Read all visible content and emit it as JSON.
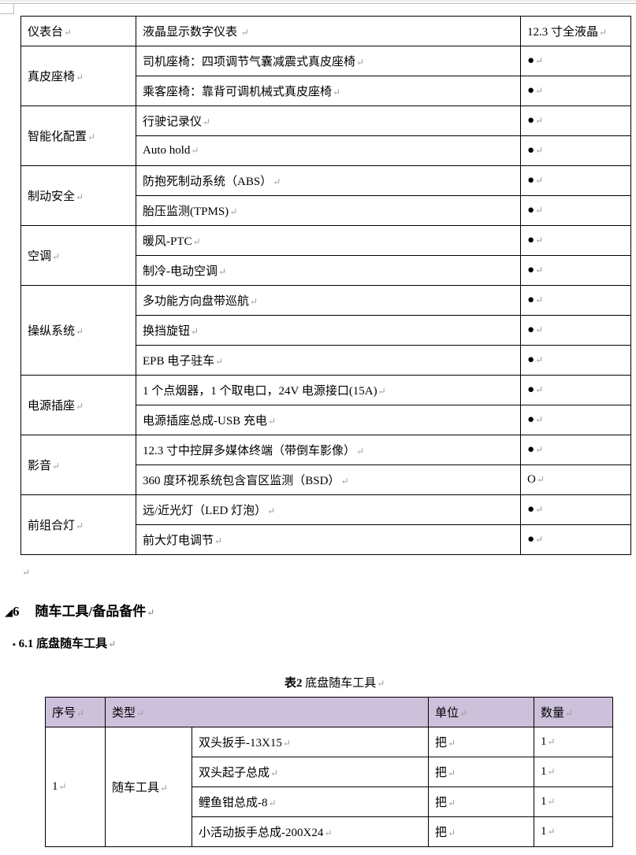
{
  "table1": {
    "rows": [
      {
        "category": "仪表台",
        "items": [
          {
            "name": "液晶显示数字仪表 ",
            "value": "12.3 寸全液晶"
          }
        ]
      },
      {
        "category": "真皮座椅",
        "items": [
          {
            "name": "司机座椅：四项调节气囊减震式真皮座椅",
            "value": "●"
          },
          {
            "name": "乘客座椅：靠背可调机械式真皮座椅",
            "value": "●"
          }
        ]
      },
      {
        "category": "智能化配置",
        "items": [
          {
            "name": "行驶记录仪",
            "value": "●"
          },
          {
            "name": "Auto hold",
            "value": "●"
          }
        ]
      },
      {
        "category": "制动安全",
        "items": [
          {
            "name": "防抱死制动系统（ABS）",
            "value": "●"
          },
          {
            "name": "胎压监测(TPMS)",
            "value": "●"
          }
        ]
      },
      {
        "category": "空调",
        "items": [
          {
            "name": "暖风-PTC",
            "value": "●"
          },
          {
            "name": "制冷-电动空调",
            "value": "●"
          }
        ]
      },
      {
        "category": "操纵系统",
        "items": [
          {
            "name": "多功能方向盘带巡航",
            "value": "●"
          },
          {
            "name": "换挡旋钮",
            "value": "●"
          },
          {
            "name": "EPB 电子驻车",
            "value": "●"
          }
        ]
      },
      {
        "category": "电源插座",
        "items": [
          {
            "name": "1 个点烟器，1 个取电口，24V 电源接口(15A)",
            "value": "●"
          },
          {
            "name": "电源插座总成-USB 充电",
            "value": "●"
          }
        ]
      },
      {
        "category": "影音",
        "items": [
          {
            "name": "12.3 寸中控屏多媒体终端（带倒车影像）",
            "value": "●"
          },
          {
            "name": "360 度环视系统包含盲区监测（BSD）",
            "value": "O"
          }
        ]
      },
      {
        "category": "前组合灯",
        "items": [
          {
            "name": "远/近光灯（LED 灯泡）",
            "value": "●"
          },
          {
            "name": "前大灯电调节",
            "value": "●"
          }
        ]
      }
    ]
  },
  "heading1": {
    "marker": "◢",
    "number": "6",
    "title": "随车工具/备品备件"
  },
  "heading2": {
    "marker": "▪",
    "number": "6.1",
    "title": "底盘随车工具"
  },
  "caption": {
    "bold": "表2",
    "text": " 底盘随车工具"
  },
  "table2": {
    "header_color": "#ccc0da",
    "headers": [
      "序号",
      "类型",
      "单位",
      "数量"
    ],
    "index": "1",
    "type": "随车工具",
    "rows": [
      {
        "name": "双头扳手-13X15",
        "unit": "把",
        "qty": "1"
      },
      {
        "name": "双头起子总成",
        "unit": "把",
        "qty": "1"
      },
      {
        "name": "鲤鱼钳总成-8",
        "unit": "把",
        "qty": "1"
      },
      {
        "name": "小活动扳手总成-200X24",
        "unit": "把",
        "qty": "1"
      }
    ]
  }
}
